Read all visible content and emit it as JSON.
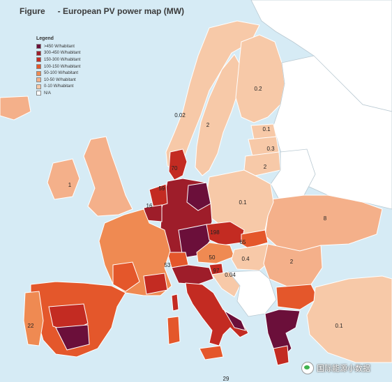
{
  "title": {
    "label": "Figure",
    "text": "- European PV power map (MW)"
  },
  "legend": {
    "title": "Legend",
    "items": [
      {
        "label": ">450 W/habitant",
        "color": "#6b0f3a"
      },
      {
        "label": "300-450 W/habitant",
        "color": "#9e1d2a"
      },
      {
        "label": "150-300 W/habitant",
        "color": "#c32b22"
      },
      {
        "label": "100-150 W/habitant",
        "color": "#e4572b"
      },
      {
        "label": "50-100 W/habitant",
        "color": "#ef8a52"
      },
      {
        "label": "10-50 W/habitant",
        "color": "#f4b08a"
      },
      {
        "label": "0-10 W/habitant",
        "color": "#f7c9a8"
      },
      {
        "label": "N/A",
        "color": "#ffffff"
      }
    ]
  },
  "map_labels": [
    "0.2",
    "0.02",
    "2",
    "0.1",
    "0.3",
    "2",
    "1",
    "70",
    "59",
    "16",
    "0.1",
    "8",
    "198",
    "65",
    "50",
    "0.4",
    "2",
    "53",
    "97",
    "0.04",
    "22",
    "0.1",
    "29"
  ],
  "watermark": "国际能源小数据"
}
